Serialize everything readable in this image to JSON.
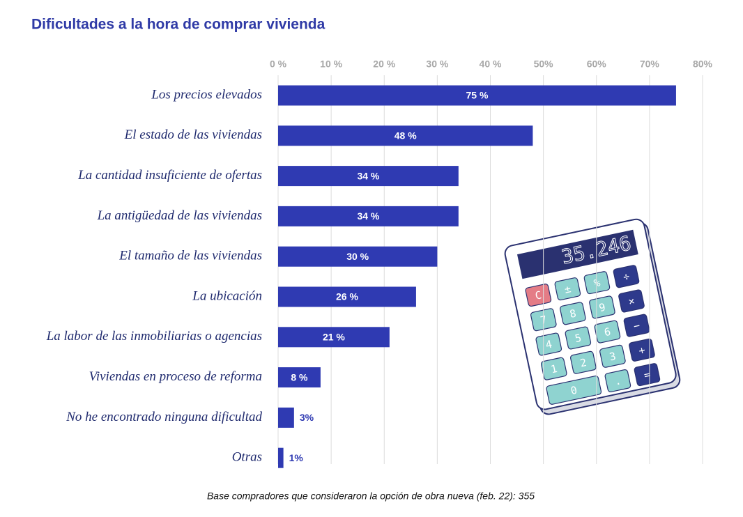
{
  "chart_data": {
    "type": "barh",
    "title": "Dificultades a la hora de comprar vivienda",
    "categories": [
      "Los precios elevados",
      "El estado de las viviendas",
      "La cantidad insuficiente de ofertas",
      "La antigüedad de las viviendas",
      "El tamaño de las viviendas",
      "La ubicación",
      "La labor de las inmobiliarias o agencias",
      "Viviendas en proceso de reforma",
      "No he encontrado ninguna dificultad",
      "Otras"
    ],
    "values": [
      75,
      48,
      34,
      34,
      30,
      26,
      21,
      8,
      3,
      1
    ],
    "value_labels": [
      "75 %",
      "48 %",
      "34 %",
      "34 %",
      "30 %",
      "26 %",
      "21 %",
      "8 %",
      "3%",
      "1%"
    ],
    "color": "#2f3ab2",
    "xlim": [
      0,
      80
    ],
    "xticks": [
      {
        "value": 0,
        "label": "0 %"
      },
      {
        "value": 10,
        "label": "10 %"
      },
      {
        "value": 20,
        "label": "20 %"
      },
      {
        "value": 30,
        "label": "30 %"
      },
      {
        "value": 40,
        "label": "40 %"
      },
      {
        "value": 50,
        "label": "50%"
      },
      {
        "value": 60,
        "label": "60%"
      },
      {
        "value": 70,
        "label": "70%"
      },
      {
        "value": 80,
        "label": "80%"
      }
    ],
    "grid": true,
    "note": "Base compradores que consideraron la opción de obra nueva (feb. 22): 355"
  },
  "illustration": {
    "display": "35.246",
    "keys": [
      "C",
      "±",
      "%",
      "÷",
      "7",
      "8",
      "9",
      "×",
      "4",
      "5",
      "6",
      "−",
      "1",
      "2",
      "3",
      "+",
      "0",
      ".",
      "="
    ]
  }
}
